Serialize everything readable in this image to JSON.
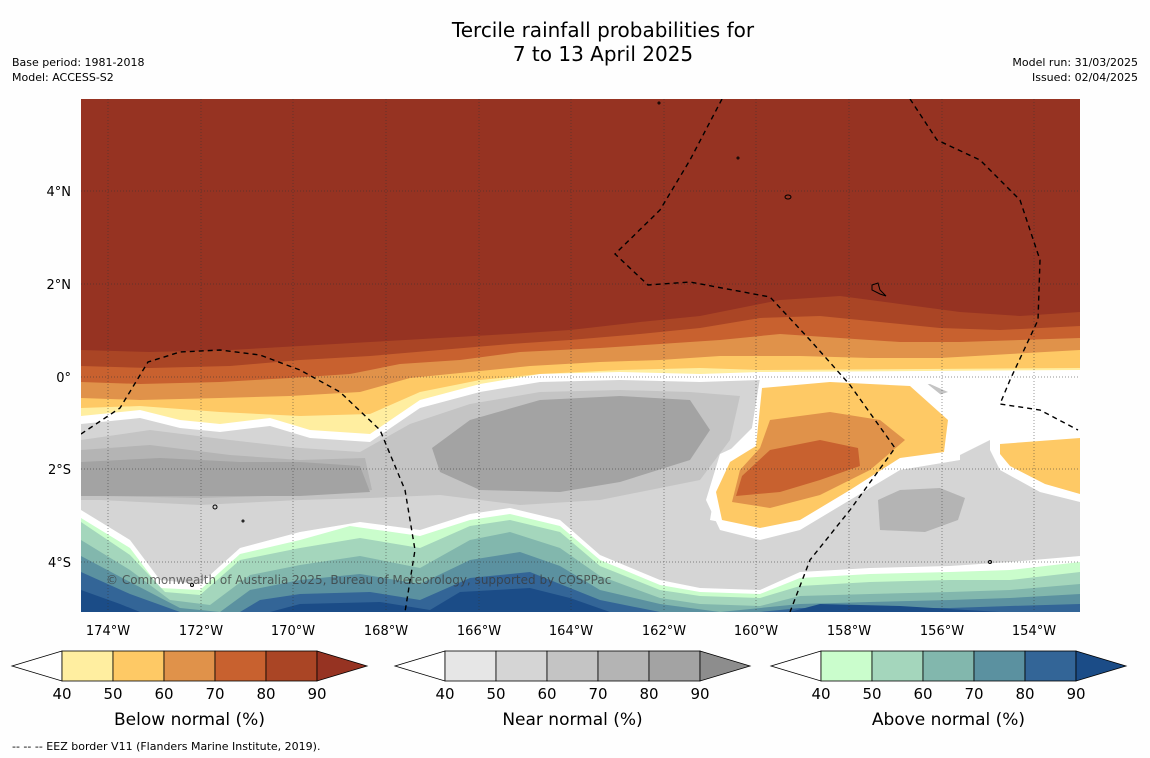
{
  "title": {
    "line1": "Tercile rainfall probabilities for",
    "line2": "7 to 13 April 2025"
  },
  "meta_left": {
    "base_period": "Base period: 1981-2018",
    "model": "Model: ACCESS-S2"
  },
  "meta_right": {
    "model_run": "Model run: 31/03/2025",
    "issued": "Issued: 02/04/2025"
  },
  "map": {
    "copyright": "© Commonwealth of Australia 2025, Bureau of Meteorology, supported by COSPPac",
    "lon_ticks": [
      "174°W",
      "172°W",
      "170°W",
      "168°W",
      "166°W",
      "164°W",
      "162°W",
      "160°W",
      "158°W",
      "156°W",
      "154°W"
    ],
    "lat_ticks": [
      "4°N",
      "2°N",
      "0°",
      "2°S",
      "4°S"
    ]
  },
  "colorbars": [
    {
      "label": "Below normal (%)",
      "ticks": [
        "40",
        "50",
        "60",
        "70",
        "80",
        "90"
      ],
      "colors": [
        "#ffeea0",
        "#fec965",
        "#e0924a",
        "#c8612f",
        "#aa4525",
        "#963322"
      ]
    },
    {
      "label": "Near normal (%)",
      "ticks": [
        "40",
        "50",
        "60",
        "70",
        "80",
        "90"
      ],
      "colors": [
        "#e6e6e6",
        "#d5d5d5",
        "#c4c4c4",
        "#b4b4b4",
        "#a3a3a3",
        "#8d8d8d"
      ]
    },
    {
      "label": "Above normal (%)",
      "ticks": [
        "40",
        "50",
        "60",
        "70",
        "80",
        "90"
      ],
      "colors": [
        "#cafdcc",
        "#a4d6bc",
        "#82b7ad",
        "#5b91a0",
        "#336597",
        "#1b4c87"
      ]
    }
  ],
  "footnote": "--  --  -- EEZ border V11 (Flanders Marine Institute, 2019)."
}
